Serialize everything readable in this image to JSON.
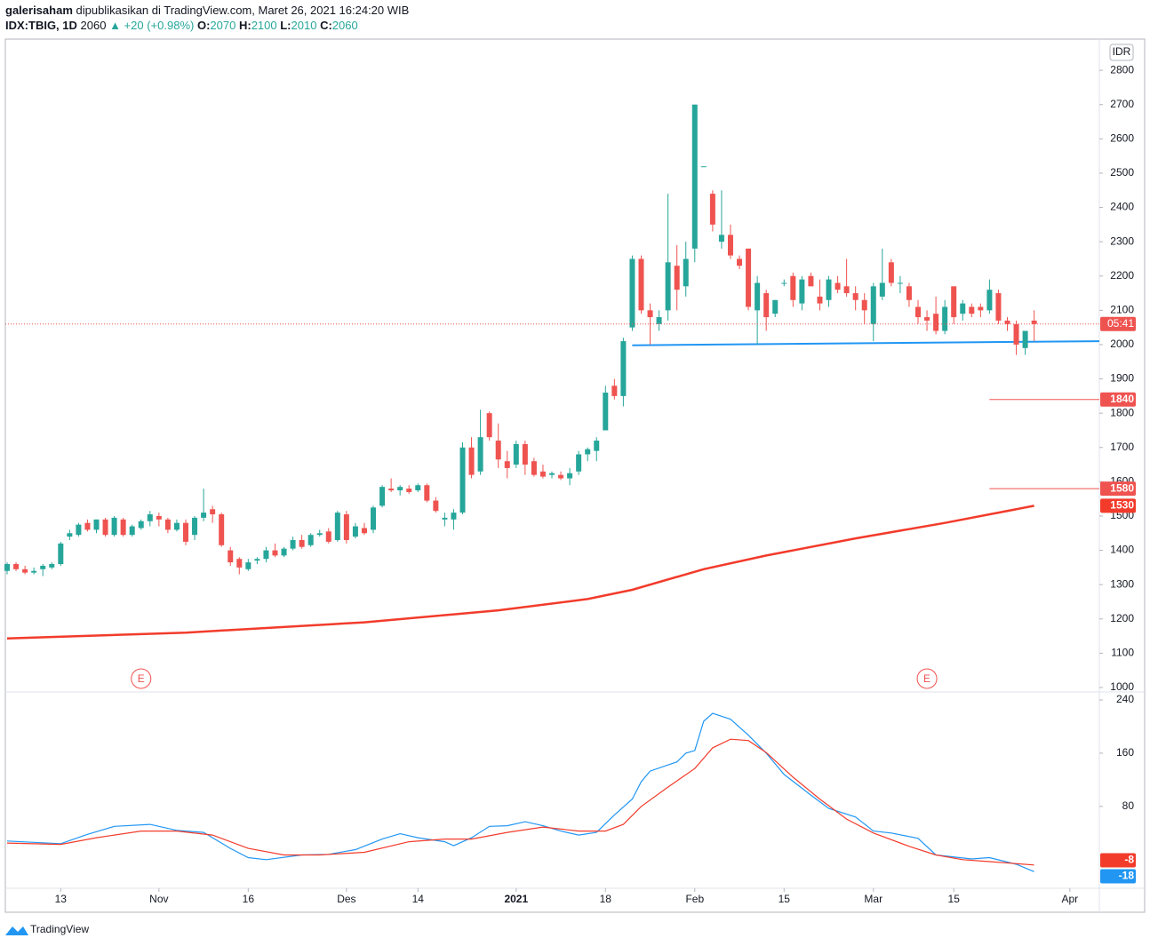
{
  "header": {
    "author": "galerisaham",
    "published": "dipublikasikan di TradingView.com, Maret 26, 2021 16:24:20 WIB",
    "symbol": "IDX:TBIG, 1D",
    "last": "2060",
    "change": "▲ +20 (+0.98%)",
    "ohlc": [
      {
        "label": "O:",
        "value": "2070"
      },
      {
        "label": "H:",
        "value": "2100"
      },
      {
        "label": "L:",
        "value": "2010"
      },
      {
        "label": "C:",
        "value": "2060"
      }
    ]
  },
  "footer": {
    "brand": "TradingView"
  },
  "chart_data": [
    {
      "type": "candlestick",
      "axis_unit": "IDR",
      "xlim": [
        -0.2,
        122.3
      ],
      "xticks": [
        {
          "value": 6,
          "label": "13"
        },
        {
          "value": 17,
          "label": "Nov"
        },
        {
          "value": 27,
          "label": "16"
        },
        {
          "value": 38,
          "label": "Des"
        },
        {
          "value": 46,
          "label": "14"
        },
        {
          "value": 57,
          "label": "2021"
        },
        {
          "value": 67,
          "label": "18"
        },
        {
          "value": 77,
          "label": "Feb"
        },
        {
          "value": 87,
          "label": "15"
        },
        {
          "value": 97,
          "label": "Mar"
        },
        {
          "value": 106,
          "label": "15"
        },
        {
          "value": 119,
          "label": "Apr"
        }
      ],
      "ylim": [
        987,
        2891
      ],
      "yticks": [
        1000,
        1100,
        1200,
        1300,
        1400,
        1500,
        1600,
        1700,
        1800,
        1900,
        2000,
        2100,
        2200,
        2300,
        2400,
        2500,
        2600,
        2700,
        2800
      ],
      "grid": false,
      "candles": {
        "up_color": "#26a69a",
        "down_color": "#ef5350",
        "values": [
          [
            1340,
            1365,
            1330,
            1360
          ],
          [
            1360,
            1365,
            1340,
            1345
          ],
          [
            1345,
            1355,
            1330,
            1335
          ],
          [
            1335,
            1350,
            1330,
            1340
          ],
          [
            1345,
            1360,
            1325,
            1355
          ],
          [
            1350,
            1365,
            1345,
            1360
          ],
          [
            1360,
            1425,
            1355,
            1420
          ],
          [
            1440,
            1460,
            1430,
            1450
          ],
          [
            1445,
            1480,
            1440,
            1475
          ],
          [
            1480,
            1490,
            1455,
            1460
          ],
          [
            1460,
            1490,
            1450,
            1490
          ],
          [
            1490,
            1495,
            1440,
            1445
          ],
          [
            1445,
            1500,
            1440,
            1495
          ],
          [
            1490,
            1495,
            1440,
            1445
          ],
          [
            1445,
            1475,
            1440,
            1470
          ],
          [
            1465,
            1490,
            1460,
            1485
          ],
          [
            1485,
            1515,
            1470,
            1505
          ],
          [
            1500,
            1510,
            1470,
            1490
          ],
          [
            1490,
            1495,
            1450,
            1460
          ],
          [
            1460,
            1490,
            1455,
            1480
          ],
          [
            1480,
            1490,
            1415,
            1425
          ],
          [
            1445,
            1500,
            1430,
            1495
          ],
          [
            1495,
            1580,
            1485,
            1510
          ],
          [
            1520,
            1530,
            1480,
            1505
          ],
          [
            1505,
            1510,
            1410,
            1415
          ],
          [
            1400,
            1410,
            1355,
            1365
          ],
          [
            1375,
            1380,
            1330,
            1350
          ],
          [
            1345,
            1375,
            1340,
            1365
          ],
          [
            1370,
            1380,
            1360,
            1375
          ],
          [
            1375,
            1410,
            1365,
            1400
          ],
          [
            1400,
            1420,
            1380,
            1385
          ],
          [
            1385,
            1410,
            1380,
            1405
          ],
          [
            1405,
            1440,
            1400,
            1430
          ],
          [
            1430,
            1445,
            1405,
            1410
          ],
          [
            1415,
            1450,
            1410,
            1445
          ],
          [
            1445,
            1460,
            1440,
            1450
          ],
          [
            1455,
            1465,
            1420,
            1425
          ],
          [
            1430,
            1515,
            1425,
            1510
          ],
          [
            1505,
            1515,
            1420,
            1430
          ],
          [
            1440,
            1480,
            1435,
            1470
          ],
          [
            1465,
            1480,
            1445,
            1450
          ],
          [
            1460,
            1530,
            1450,
            1525
          ],
          [
            1530,
            1590,
            1525,
            1585
          ],
          [
            1580,
            1610,
            1570,
            1575
          ],
          [
            1575,
            1590,
            1560,
            1585
          ],
          [
            1580,
            1590,
            1565,
            1570
          ],
          [
            1575,
            1595,
            1570,
            1590
          ],
          [
            1590,
            1595,
            1540,
            1545
          ],
          [
            1545,
            1555,
            1510,
            1515
          ],
          [
            1490,
            1510,
            1470,
            1495
          ],
          [
            1490,
            1520,
            1460,
            1510
          ],
          [
            1510,
            1715,
            1505,
            1700
          ],
          [
            1700,
            1730,
            1610,
            1620
          ],
          [
            1630,
            1810,
            1620,
            1730
          ],
          [
            1800,
            1805,
            1720,
            1730
          ],
          [
            1720,
            1770,
            1640,
            1665
          ],
          [
            1660,
            1690,
            1610,
            1640
          ],
          [
            1650,
            1720,
            1640,
            1710
          ],
          [
            1710,
            1720,
            1620,
            1650
          ],
          [
            1660,
            1670,
            1615,
            1620
          ],
          [
            1630,
            1650,
            1610,
            1615
          ],
          [
            1620,
            1630,
            1610,
            1625
          ],
          [
            1620,
            1630,
            1605,
            1610
          ],
          [
            1610,
            1640,
            1590,
            1625
          ],
          [
            1630,
            1690,
            1620,
            1680
          ],
          [
            1680,
            1700,
            1660,
            1695
          ],
          [
            1690,
            1730,
            1660,
            1720
          ],
          [
            1750,
            1880,
            1750,
            1860
          ],
          [
            1880,
            1900,
            1840,
            1850
          ],
          [
            1850,
            2020,
            1820,
            2010
          ],
          [
            2050,
            2260,
            2040,
            2250
          ],
          [
            2250,
            2260,
            2090,
            2100
          ],
          [
            2100,
            2120,
            2000,
            2080
          ],
          [
            2060,
            2100,
            2040,
            2080
          ],
          [
            2100,
            2440,
            2070,
            2240
          ],
          [
            2230,
            2290,
            2100,
            2160
          ],
          [
            2170,
            2300,
            2140,
            2250
          ],
          [
            2280,
            2700,
            2240,
            2700
          ],
          [
            2520,
            2520,
            2520,
            2520
          ],
          [
            2440,
            2450,
            2330,
            2350
          ],
          [
            2300,
            2450,
            2280,
            2320
          ],
          [
            2320,
            2350,
            2250,
            2260
          ],
          [
            2250,
            2260,
            2220,
            2230
          ],
          [
            2280,
            2280,
            2100,
            2110
          ],
          [
            2100,
            2200,
            2000,
            2180
          ],
          [
            2150,
            2160,
            2040,
            2080
          ],
          [
            2090,
            2130,
            2080,
            2130
          ],
          [
            2180,
            2190,
            2170,
            2180
          ],
          [
            2200,
            2210,
            2110,
            2130
          ],
          [
            2120,
            2200,
            2100,
            2190
          ],
          [
            2200,
            2210,
            2170,
            2170
          ],
          [
            2140,
            2190,
            2100,
            2120
          ],
          [
            2130,
            2200,
            2110,
            2190
          ],
          [
            2180,
            2200,
            2150,
            2160
          ],
          [
            2170,
            2250,
            2140,
            2150
          ],
          [
            2150,
            2170,
            2100,
            2130
          ],
          [
            2130,
            2150,
            2060,
            2100
          ],
          [
            2060,
            2180,
            2010,
            2170
          ],
          [
            2140,
            2280,
            2130,
            2180
          ],
          [
            2240,
            2250,
            2170,
            2180
          ],
          [
            2180,
            2200,
            2150,
            2180
          ],
          [
            2170,
            2180,
            2110,
            2130
          ],
          [
            2110,
            2130,
            2060,
            2080
          ],
          [
            2080,
            2100,
            2040,
            2070
          ],
          [
            2090,
            2140,
            2030,
            2040
          ],
          [
            2040,
            2130,
            2030,
            2110
          ],
          [
            2170,
            2170,
            2060,
            2080
          ],
          [
            2090,
            2130,
            2070,
            2120
          ],
          [
            2110,
            2120,
            2080,
            2090
          ],
          [
            2110,
            2120,
            2080,
            2100
          ],
          [
            2100,
            2190,
            2090,
            2160
          ],
          [
            2150,
            2160,
            2060,
            2070
          ],
          [
            2070,
            2080,
            2040,
            2060
          ],
          [
            2060,
            2070,
            1970,
            2000
          ],
          [
            1990,
            2040,
            1970,
            2040
          ],
          [
            2070,
            2100,
            2010,
            2060
          ]
        ]
      },
      "lines": [
        {
          "color": "#f23b2b",
          "x": [
            0,
            20,
            40,
            55,
            65,
            70,
            78,
            85,
            95,
            105,
            115
          ],
          "values": [
            1143,
            1160,
            1190,
            1225,
            1258,
            1285,
            1345,
            1385,
            1435,
            1480,
            1530
          ]
        }
      ],
      "trendline": {
        "color": "#2196f3",
        "x": [
          70,
          122.3
        ],
        "values": [
          1998,
          2010
        ]
      },
      "hlines": [
        {
          "value": 1840,
          "color": "#ef5350",
          "from": 110
        },
        {
          "value": 1580,
          "color": "#ef5350",
          "from": 110
        }
      ],
      "countdown": {
        "label": "05:41",
        "color": "#ef5350"
      },
      "events": {
        "x": [
          15,
          103
        ],
        "label": "E",
        "color": "#ef5350"
      }
    },
    {
      "type": "line",
      "ylim": [
        -43,
        252
      ],
      "yticks": [
        80,
        160,
        240
      ],
      "series": [
        {
          "color": "#2196f3",
          "x": [
            0,
            6,
            9,
            12,
            16,
            19,
            22,
            25,
            27,
            29,
            33,
            36,
            39,
            42,
            44,
            46,
            49,
            50,
            52,
            54,
            56,
            58,
            60,
            62,
            64,
            66,
            68,
            70,
            71,
            72,
            75,
            76,
            77,
            78,
            79,
            81,
            83,
            85,
            87,
            90,
            92,
            95,
            97,
            99,
            102,
            104,
            108,
            110,
            113,
            115
          ],
          "values": [
            28,
            24,
            38,
            50,
            53,
            44,
            41,
            17,
            3,
            0,
            7,
            8,
            15,
            31,
            39,
            33,
            27,
            21,
            33,
            50,
            51,
            57,
            51,
            43,
            37,
            41,
            67,
            91,
            117,
            133,
            147,
            160,
            164,
            208,
            220,
            211,
            187,
            160,
            128,
            97,
            77,
            64,
            43,
            40,
            32,
            7,
            1,
            3,
            -7,
            -18
          ]
        },
        {
          "color": "#f23b2b",
          "x": [
            0,
            6,
            10,
            15,
            19,
            23,
            27,
            31,
            35,
            40,
            45,
            49,
            52,
            56,
            60,
            64,
            67,
            69,
            71,
            74,
            77,
            79,
            81,
            83,
            85,
            88,
            91,
            94,
            97,
            101,
            104,
            107,
            110,
            115
          ],
          "values": [
            25,
            23,
            33,
            43,
            43,
            37,
            17,
            7,
            7,
            11,
            27,
            31,
            31,
            41,
            49,
            43,
            43,
            53,
            80,
            109,
            137,
            168,
            181,
            179,
            161,
            124,
            91,
            61,
            40,
            20,
            7,
            0,
            -3,
            -8
          ]
        }
      ]
    }
  ]
}
